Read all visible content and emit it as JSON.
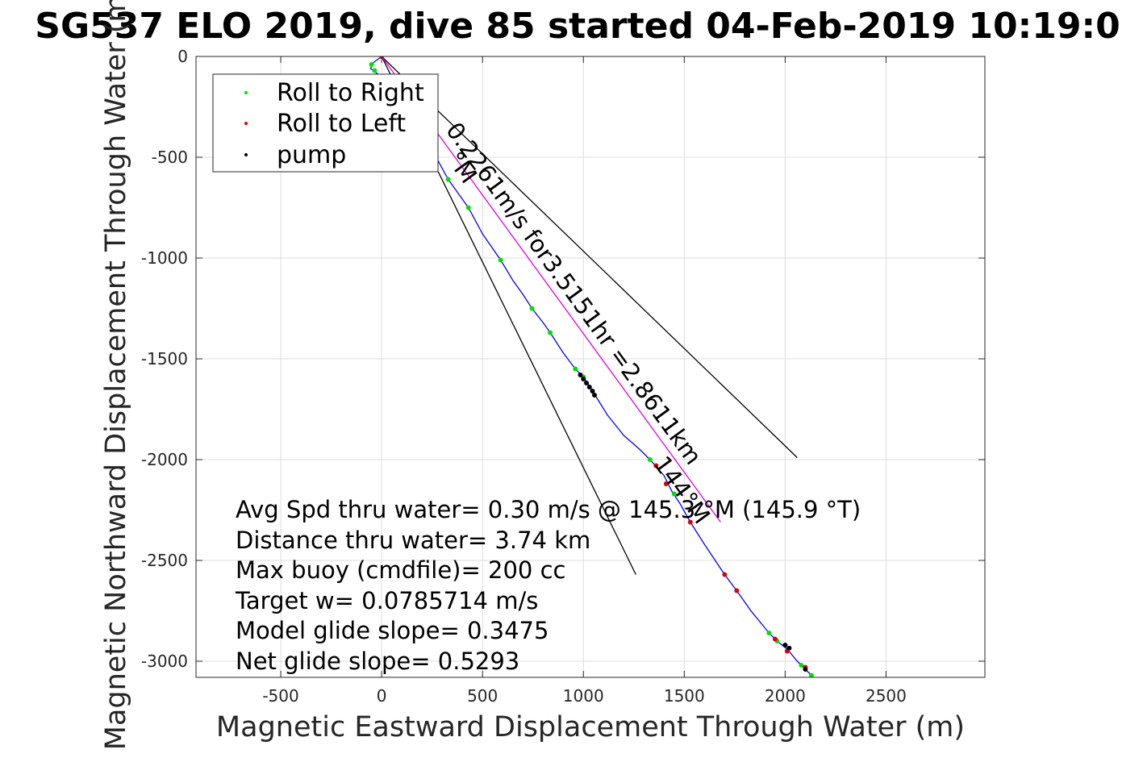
{
  "chart_data": {
    "type": "scatter",
    "title": "SG537 ELO 2019, dive 85 started 04-Feb-2019 10:19:0",
    "xlabel": "Magnetic Eastward Displacement Through Water (m)",
    "ylabel": "Magnetic Northward Displacement Through Water (m)",
    "xlim": [
      -920,
      2990
    ],
    "ylim": [
      -3080,
      0
    ],
    "xticks": [
      -500,
      0,
      500,
      1000,
      1500,
      2000,
      2500
    ],
    "yticks": [
      0,
      -500,
      -1000,
      -1500,
      -2000,
      -2500,
      -3000
    ],
    "xtick_labels": [
      "-500",
      "0",
      "500",
      "1000",
      "1500",
      "2000",
      "2500"
    ],
    "ytick_labels": [
      "0",
      "-500",
      "-1000",
      "-1500",
      "-2000",
      "-2500",
      "-3000"
    ],
    "grid": true,
    "legend_position": "top-left",
    "legend": [
      {
        "label": "Roll to Right",
        "color": "#00e000"
      },
      {
        "label": "Roll to Left",
        "color": "#e00000"
      },
      {
        "label": "pump",
        "color": "#000000"
      }
    ],
    "track": {
      "color": "#0000ff",
      "x": [
        0,
        -40,
        -55,
        -40,
        20,
        110,
        200,
        270,
        330,
        380,
        430,
        500,
        590,
        650,
        700,
        745,
        800,
        835,
        900,
        960,
        1000,
        1040,
        1070,
        1120,
        1200,
        1280,
        1330,
        1400,
        1440,
        1480,
        1530,
        1600,
        1700,
        1760,
        1830,
        1920,
        1960,
        2010,
        2060,
        2100,
        2130
      ],
      "y": [
        0,
        -30,
        -60,
        -70,
        -120,
        -250,
        -380,
        -500,
        -610,
        -680,
        -750,
        -880,
        -1010,
        -1110,
        -1180,
        -1250,
        -1320,
        -1370,
        -1470,
        -1550,
        -1590,
        -1650,
        -1700,
        -1780,
        -1880,
        -1950,
        -2000,
        -2080,
        -2160,
        -2220,
        -2310,
        -2420,
        -2570,
        -2650,
        -2750,
        -2860,
        -2900,
        -2940,
        -3000,
        -3040,
        -3070
      ]
    },
    "series": [
      {
        "name": "Roll to Right",
        "color": "#00e000",
        "x": [
          -50,
          -35,
          330,
          430,
          590,
          745,
          835,
          960,
          1000,
          1330,
          1450,
          1920,
          1960,
          2080,
          2130
        ],
        "y": [
          -40,
          -70,
          -610,
          -750,
          -1010,
          -1250,
          -1370,
          -1550,
          -1590,
          -2000,
          -2170,
          -2860,
          -2900,
          -3020,
          -3070
        ]
      },
      {
        "name": "Roll to Left",
        "color": "#e00000",
        "x": [
          0,
          1360,
          1410,
          1530,
          1700,
          1760,
          1950,
          2010,
          2100
        ],
        "y": [
          0,
          -2030,
          -2120,
          -2310,
          -2570,
          -2650,
          -2890,
          -2950,
          -3030
        ]
      },
      {
        "name": "pump",
        "color": "#000000",
        "x": [
          985,
          1000,
          1015,
          1030,
          1045,
          1055,
          2000,
          2020,
          2100
        ],
        "y": [
          -1580,
          -1600,
          -1620,
          -1640,
          -1660,
          -1680,
          -2920,
          -2935,
          -3040
        ]
      }
    ],
    "reference_lines": [
      {
        "color": "#000000",
        "x": [
          0,
          2060
        ],
        "y": [
          0,
          -1990
        ]
      },
      {
        "color": "#000000",
        "x": [
          0,
          1260
        ],
        "y": [
          0,
          -2570
        ]
      },
      {
        "color": "#e000e0",
        "x": [
          0,
          1680
        ],
        "y": [
          0,
          -2310
        ]
      }
    ],
    "rotated_labels": [
      {
        "text": "0.2261m/s for3.5151hr =2.8611km",
        "x": 315,
        "y": -365,
        "angle": 54
      },
      {
        "text": "144°M",
        "x": 1345,
        "y": -2020,
        "angle": 54
      },
      {
        "text": "°M",
        "x": 320,
        "y": -510,
        "angle": 54
      }
    ],
    "annotations": [
      "Avg Spd thru water=  0.30 m/s @ 145.3 °M (145.9 °T)",
      "Distance thru water=  3.74 km",
      "Max buoy (cmdfile)= 200 cc",
      "Target w= 0.0785714 m/s",
      "Model glide slope= 0.3475",
      "Net glide slope= 0.5293"
    ]
  }
}
